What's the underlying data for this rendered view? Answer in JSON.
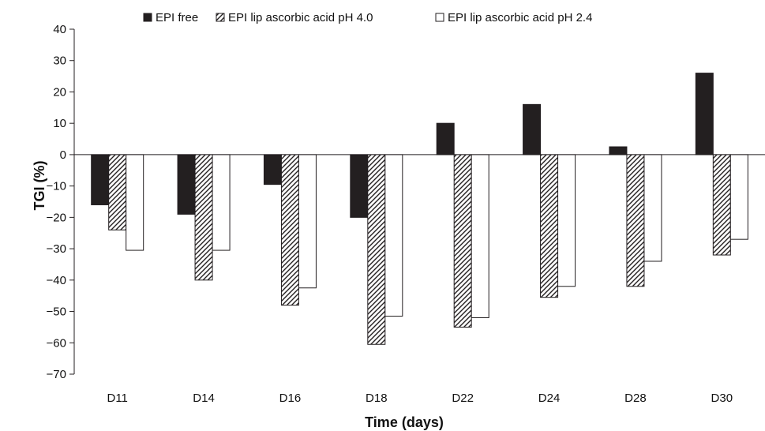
{
  "chart_data": {
    "type": "bar",
    "title": "",
    "xlabel": "Time (days)",
    "ylabel": "TGI (%)",
    "ylim": [
      -70,
      40
    ],
    "yticks": [
      40,
      30,
      20,
      10,
      0,
      -10,
      -20,
      -30,
      -40,
      -50,
      -60,
      -70
    ],
    "categories": [
      "D11",
      "D14",
      "D16",
      "D18",
      "D22",
      "D24",
      "D28",
      "D30"
    ],
    "legend_position": "top",
    "grid": false,
    "series": [
      {
        "name": "EPI free",
        "fill": "#231f20",
        "pattern": "solid",
        "values": [
          -16,
          -19,
          -9.5,
          -20,
          10,
          16,
          2.5,
          26
        ]
      },
      {
        "name": "EPI lip ascorbic acid pH 4.0",
        "fill": "#ffffff",
        "pattern": "diagonal-hatch",
        "values": [
          -24,
          -40,
          -48,
          -60.5,
          -55,
          -45.5,
          -42,
          -32
        ]
      },
      {
        "name": "EPI lip ascorbic acid pH 2.4",
        "fill": "#ffffff",
        "pattern": "none",
        "values": [
          -30.5,
          -30.5,
          -42.5,
          -51.5,
          -52,
          -42,
          -34,
          -27
        ]
      }
    ]
  }
}
